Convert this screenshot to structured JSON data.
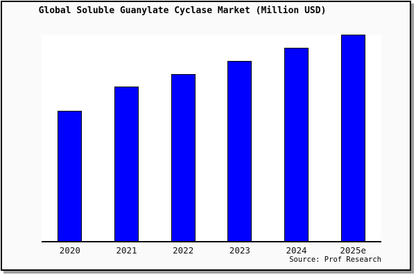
{
  "title": "Global Soluble Guanylate Cyclase Market (Million USD)",
  "source": "Source: Prof Research",
  "colors": {
    "bar_fill": "#0000ff",
    "bar_border": "#000000",
    "frame_background": "#fafafa",
    "plot_background": "#ffffff",
    "frame_border": "#000000",
    "shadow": "#9e9e9e"
  },
  "chart_data": {
    "type": "bar",
    "title": "Global Soluble Guanylate Cyclase Market (Million USD)",
    "categories": [
      "2020",
      "2021",
      "2022",
      "2023",
      "2024",
      "2025e"
    ],
    "values": [
      63,
      75,
      81,
      87.3,
      93.7,
      100
    ],
    "values_note": "No y-axis scale is shown in the chart; values are relative bar heights with 2025e normalized to 100",
    "xlabel": "",
    "ylabel": "",
    "ylim": [
      0,
      100
    ],
    "grid": false,
    "legend": false,
    "source": "Source: Prof Research"
  }
}
